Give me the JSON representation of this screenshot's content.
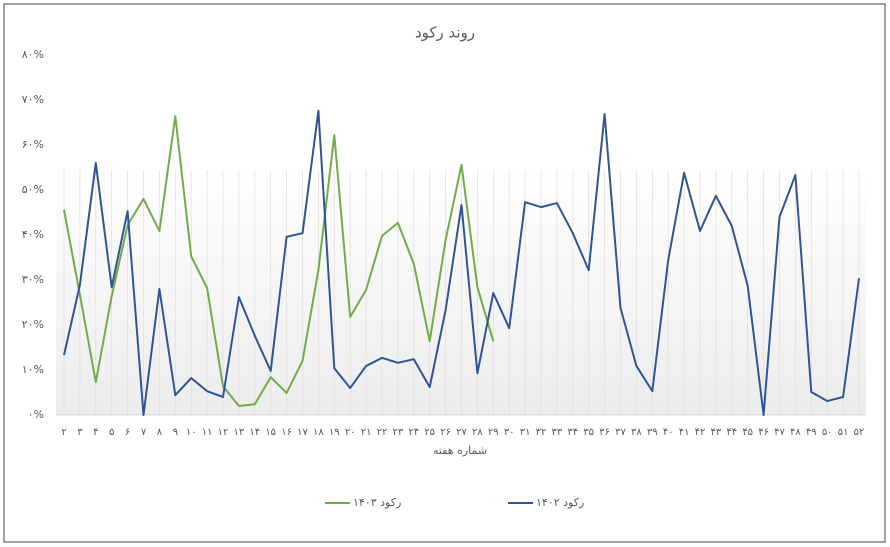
{
  "chart_data": {
    "type": "line",
    "title": "روند رکود",
    "x_label": "شماره هفته",
    "categories": [
      "۲",
      "۳",
      "۴",
      "۵",
      "۶",
      "۷",
      "۸",
      "۹",
      "۱۰",
      "۱۱",
      "۱۲",
      "۱۳",
      "۱۴",
      "۱۵",
      "۱۶",
      "۱۷",
      "۱۸",
      "۱۹",
      "۲۰",
      "۲۱",
      "۲۲",
      "۲۳",
      "۲۴",
      "۲۵",
      "۲۶",
      "۲۷",
      "۲۸",
      "۲۹",
      "۳۰",
      "۳۱",
      "۳۲",
      "۳۳",
      "۳۴",
      "۳۵",
      "۳۶",
      "۳۷",
      "۳۸",
      "۳۹",
      "۴۰",
      "۴۱",
      "۴۲",
      "۴۳",
      "۴۴",
      "۴۵",
      "۴۶",
      "۴۷",
      "۴۸",
      "۴۹",
      "۵۰",
      "۵۱",
      "۵۲"
    ],
    "series": [
      {
        "name": "رکود ۱۴۰۳",
        "color": "#70ad47",
        "values": [
          45.6,
          26.7,
          7.3,
          26.4,
          42.2,
          48,
          40.9,
          66.4,
          35.3,
          28.2,
          6.4,
          2,
          2.4,
          8.4,
          4.9,
          12,
          32.2,
          62.2,
          21.8,
          27.8,
          39.8,
          42.7,
          33.6,
          16.4,
          38.9,
          55.6,
          28.4,
          16.4,
          null,
          null,
          null,
          null,
          null,
          null,
          null,
          null,
          null,
          null,
          null,
          null,
          null,
          null,
          null,
          null,
          null,
          null,
          null,
          null,
          null,
          null,
          null
        ]
      },
      {
        "name": "رکود ۱۴۰۲",
        "color": "#2f5597",
        "values": [
          13.3,
          28.9,
          56,
          28.4,
          45.3,
          0,
          28,
          4.4,
          8.2,
          5.3,
          4,
          26.2,
          17.6,
          9.8,
          39.6,
          40.4,
          67.6,
          10.4,
          6,
          10.9,
          12.7,
          11.6,
          12.4,
          6.2,
          23.3,
          46.7,
          9.3,
          27.1,
          19.3,
          47.3,
          46.2,
          47.1,
          40.4,
          32.2,
          66.9,
          23.8,
          10.9,
          5.3,
          34.4,
          53.8,
          40.9,
          48.7,
          42,
          28.7,
          0,
          44,
          53.3,
          5.1,
          3.1,
          4,
          30.4
        ]
      }
    ],
    "ylim": [
      0,
      80
    ],
    "yticks": [
      {
        "value": 0,
        "label": "۰%"
      },
      {
        "value": 10,
        "label": "۱۰%"
      },
      {
        "value": 20,
        "label": "۲۰%"
      },
      {
        "value": 30,
        "label": "۳۰%"
      },
      {
        "value": 40,
        "label": "۴۰%"
      },
      {
        "value": 50,
        "label": "۵۰%"
      },
      {
        "value": 60,
        "label": "۶۰%"
      },
      {
        "value": 70,
        "label": "۷۰%"
      },
      {
        "value": 80,
        "label": "۸۰%"
      }
    ],
    "legend": "bottom"
  }
}
